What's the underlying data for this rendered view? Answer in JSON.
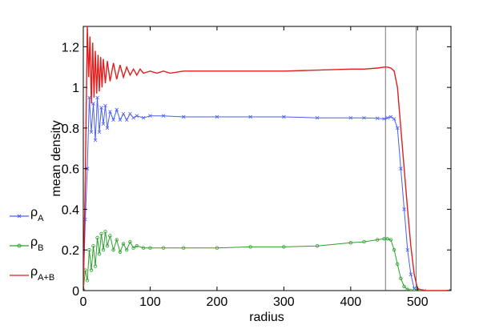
{
  "chart_data": {
    "type": "line",
    "title": "",
    "xlabel": "radius",
    "ylabel": "mean density",
    "xlim": [
      0,
      550
    ],
    "ylim": [
      0,
      1.3
    ],
    "xticks": [
      0,
      100,
      200,
      300,
      400,
      500
    ],
    "xtick_labels": [
      "0",
      "100",
      "200",
      "300",
      "400",
      "500"
    ],
    "yticks": [
      0,
      0.2,
      0.4,
      0.6,
      0.8,
      1.0,
      1.2
    ],
    "ytick_labels": [
      "0",
      "0.2",
      "0.4",
      "0.6",
      "0.8",
      "1",
      "1.2"
    ],
    "vlines": [
      452,
      498
    ],
    "grid": false,
    "legend_position": "left, below plot",
    "series": [
      {
        "name": "ρ_A",
        "label_main": "ρ",
        "label_sub": "A",
        "color": "#4a5ff5",
        "marker": "x",
        "x": [
          0,
          3,
          6,
          9,
          12,
          15,
          18,
          21,
          24,
          27,
          30,
          33,
          36,
          40,
          45,
          50,
          55,
          60,
          65,
          70,
          75,
          80,
          90,
          100,
          120,
          150,
          200,
          250,
          300,
          350,
          400,
          420,
          440,
          450,
          455,
          460,
          465,
          470,
          475,
          480,
          485,
          490,
          495,
          500,
          510,
          550
        ],
        "y": [
          0.0,
          0.35,
          0.6,
          0.95,
          0.78,
          0.92,
          0.74,
          0.95,
          0.78,
          0.9,
          0.82,
          0.91,
          0.8,
          0.88,
          0.84,
          0.89,
          0.84,
          0.87,
          0.84,
          0.87,
          0.85,
          0.86,
          0.85,
          0.86,
          0.86,
          0.855,
          0.855,
          0.855,
          0.855,
          0.85,
          0.85,
          0.85,
          0.848,
          0.845,
          0.85,
          0.855,
          0.845,
          0.8,
          0.6,
          0.4,
          0.2,
          0.08,
          0.01,
          0.0,
          0.0,
          0.0
        ]
      },
      {
        "name": "ρ_B",
        "label_main": "ρ",
        "label_sub": "B",
        "color": "#2ca02c",
        "marker": "o",
        "x": [
          0,
          3,
          6,
          9,
          12,
          15,
          18,
          21,
          24,
          27,
          30,
          33,
          36,
          40,
          45,
          50,
          55,
          60,
          65,
          70,
          75,
          80,
          90,
          100,
          120,
          150,
          200,
          250,
          300,
          350,
          400,
          420,
          440,
          450,
          455,
          460,
          465,
          470,
          475,
          480,
          485,
          490,
          495,
          500,
          550
        ],
        "y": [
          0.0,
          0.1,
          0.05,
          0.2,
          0.1,
          0.22,
          0.12,
          0.26,
          0.18,
          0.28,
          0.2,
          0.29,
          0.22,
          0.27,
          0.2,
          0.25,
          0.19,
          0.23,
          0.2,
          0.24,
          0.21,
          0.22,
          0.21,
          0.21,
          0.21,
          0.21,
          0.21,
          0.215,
          0.215,
          0.22,
          0.235,
          0.24,
          0.25,
          0.255,
          0.255,
          0.25,
          0.2,
          0.13,
          0.06,
          0.02,
          0.005,
          0.0,
          0.0,
          0.0,
          0.0
        ]
      },
      {
        "name": "ρ_A+B",
        "label_main": "ρ",
        "label_sub": "A+B",
        "color": "#e11f1f",
        "marker": "none",
        "x": [
          0,
          3,
          6,
          8,
          10,
          12,
          14,
          16,
          18,
          20,
          22,
          24,
          26,
          28,
          30,
          33,
          36,
          40,
          45,
          50,
          55,
          60,
          65,
          70,
          75,
          80,
          85,
          90,
          100,
          110,
          120,
          130,
          150,
          200,
          250,
          300,
          350,
          400,
          420,
          440,
          450,
          455,
          460,
          465,
          470,
          475,
          480,
          485,
          490,
          495,
          500,
          510,
          550
        ],
        "y": [
          0.0,
          0.55,
          1.3,
          1.05,
          1.25,
          0.92,
          1.22,
          0.95,
          1.18,
          0.97,
          1.16,
          0.98,
          1.15,
          1.0,
          1.14,
          1.02,
          1.13,
          1.03,
          1.12,
          1.04,
          1.11,
          1.05,
          1.1,
          1.06,
          1.09,
          1.06,
          1.09,
          1.07,
          1.08,
          1.07,
          1.08,
          1.07,
          1.08,
          1.08,
          1.08,
          1.08,
          1.085,
          1.09,
          1.09,
          1.095,
          1.1,
          1.1,
          1.095,
          1.08,
          1.0,
          0.8,
          0.6,
          0.4,
          0.22,
          0.08,
          0.01,
          0.0,
          0.0
        ]
      }
    ]
  }
}
